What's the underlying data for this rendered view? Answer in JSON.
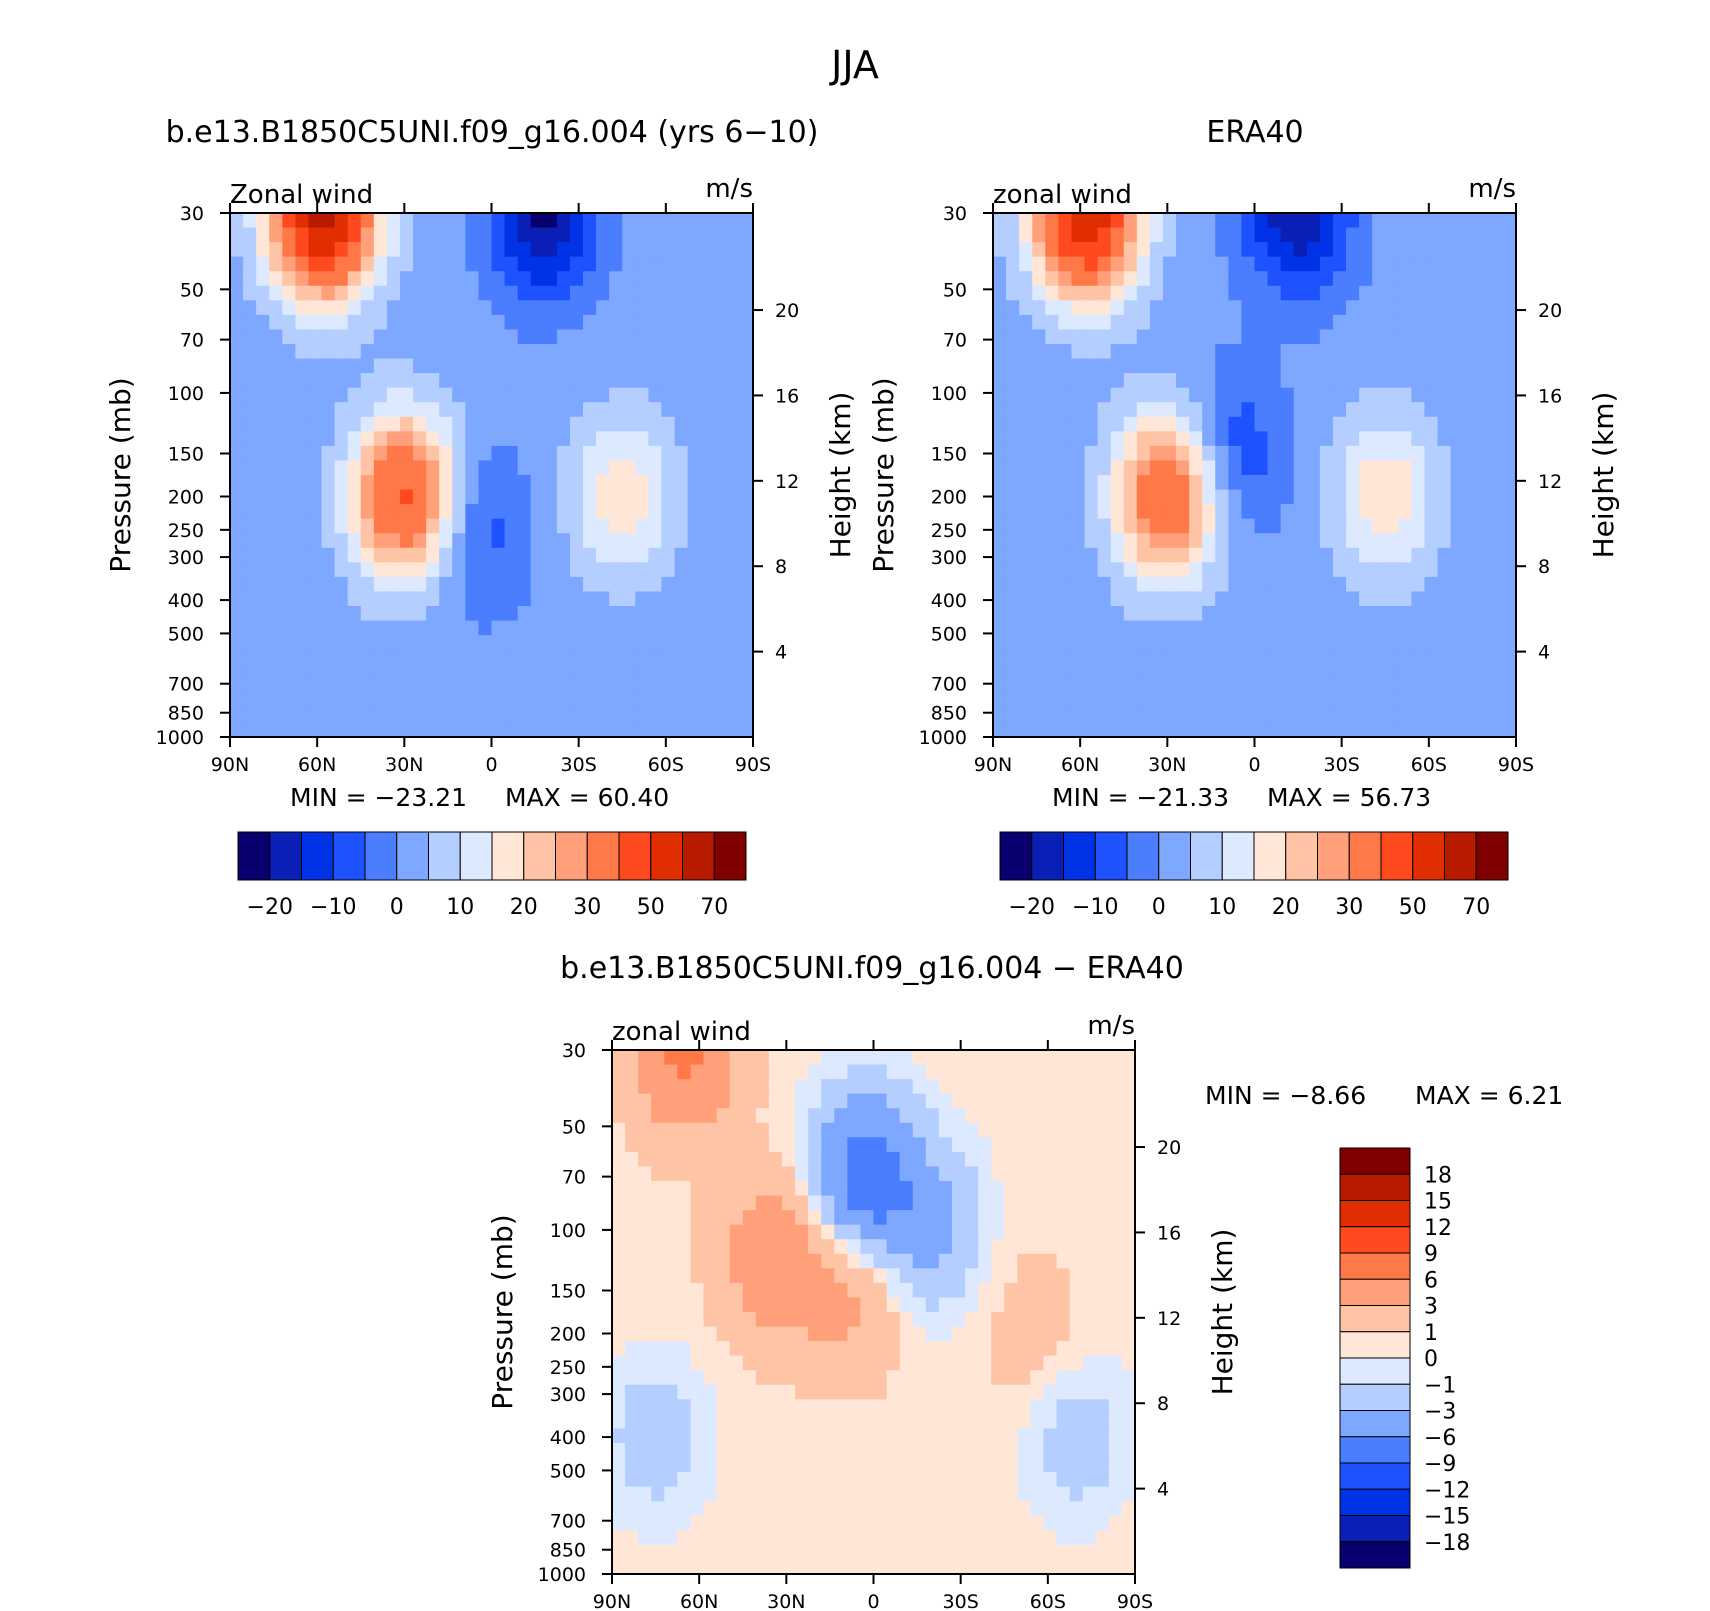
{
  "figure": {
    "title": "JJA"
  },
  "colors": {
    "abs_bins": [
      "#08006e",
      "#0a1fb5",
      "#0033e6",
      "#1f52ff",
      "#4a7eff",
      "#7ea8ff",
      "#b4ceff",
      "#dce9ff",
      "#ffe6d6",
      "#ffc4a6",
      "#ffa07a",
      "#ff7847",
      "#ff4a1f",
      "#e02e00",
      "#b81a00",
      "#800000"
    ],
    "diff_bins": [
      "#08006e",
      "#0a1fb5",
      "#0033e6",
      "#1f52ff",
      "#4a7eff",
      "#7ea8ff",
      "#b4ceff",
      "#dce9ff",
      "#ffe6d6",
      "#ffc4a6",
      "#ffa07a",
      "#ff7847",
      "#ff4a1f",
      "#e02e00",
      "#b81a00",
      "#800000"
    ]
  },
  "chart_data": [
    {
      "type": "heatmap",
      "id": "model",
      "title": "b.e13.B1850C5UNI.f09_g16.004 (yrs 6−10)",
      "left_label": "Zonal wind",
      "right_label": "m/s",
      "xlabel": "",
      "ylabel": "Pressure (mb)",
      "y2label": "Height (km)",
      "x_ticks": [
        "90N",
        "60N",
        "30N",
        "0",
        "30S",
        "60S",
        "90S"
      ],
      "y_ticks": [
        "30",
        "50",
        "70",
        "100",
        "150",
        "200",
        "250",
        "300",
        "400",
        "500",
        "700",
        "850",
        "1000"
      ],
      "height_ticks": [
        "20",
        "16",
        "12",
        "8",
        "4"
      ],
      "min_text": "MIN = −23.21",
      "max_text": "MAX = 60.40",
      "levels": [
        -25,
        -20,
        -15,
        -10,
        -5,
        0,
        5,
        10,
        15,
        20,
        25,
        30,
        40,
        50,
        60,
        70
      ],
      "colorbar_labels": [
        "−20",
        "−10",
        "0",
        "10",
        "20",
        "30",
        "50",
        "70"
      ],
      "peaks": [
        {
          "lat": -45,
          "p": 200,
          "value": 16
        },
        {
          "lat": -18,
          "p": 30,
          "value": -23.21
        },
        {
          "lat": 5,
          "p": 250,
          "value": -10
        },
        {
          "lat": 58,
          "p": 30,
          "value": 60.4
        },
        {
          "lat": 30,
          "p": 200,
          "value": 40
        }
      ],
      "background": 2
    },
    {
      "type": "heatmap",
      "id": "obs",
      "title": "ERA40",
      "left_label": "zonal wind",
      "right_label": "m/s",
      "xlabel": "",
      "ylabel": "Pressure (mb)",
      "y2label": "Height (km)",
      "x_ticks": [
        "90N",
        "60N",
        "30N",
        "0",
        "30S",
        "60S",
        "90S"
      ],
      "y_ticks": [
        "30",
        "50",
        "70",
        "100",
        "150",
        "200",
        "250",
        "300",
        "400",
        "500",
        "700",
        "850",
        "1000"
      ],
      "height_ticks": [
        "20",
        "16",
        "12",
        "8",
        "4"
      ],
      "min_text": "MIN = −21.33",
      "max_text": "MAX = 56.73",
      "levels": [
        -25,
        -20,
        -15,
        -10,
        -5,
        0,
        5,
        10,
        15,
        20,
        25,
        30,
        40,
        50,
        60,
        70
      ],
      "colorbar_labels": [
        "−20",
        "−10",
        "0",
        "10",
        "20",
        "30",
        "50",
        "70"
      ],
      "peaks": [
        {
          "lat": -45,
          "p": 200,
          "value": 17
        },
        {
          "lat": -15,
          "p": 30,
          "value": -21.33
        },
        {
          "lat": 8,
          "p": 150,
          "value": -12
        },
        {
          "lat": 58,
          "p": 30,
          "value": 56.73
        },
        {
          "lat": 30,
          "p": 200,
          "value": 38
        }
      ],
      "background": 2
    },
    {
      "type": "heatmap",
      "id": "diff",
      "title": "b.e13.B1850C5UNI.f09_g16.004 − ERA40",
      "left_label": "zonal wind",
      "right_label": "m/s",
      "xlabel": "",
      "ylabel": "Pressure (mb)",
      "y2label": "Height (km)",
      "x_ticks": [
        "90N",
        "60N",
        "30N",
        "0",
        "30S",
        "60S",
        "90S"
      ],
      "y_ticks": [
        "30",
        "50",
        "70",
        "100",
        "150",
        "200",
        "250",
        "300",
        "400",
        "500",
        "700",
        "850",
        "1000"
      ],
      "height_ticks": [
        "20",
        "16",
        "12",
        "8",
        "4"
      ],
      "min_text": "MIN = −8.66",
      "max_text": "MAX = 6.21",
      "levels": [
        -21,
        -18,
        -15,
        -12,
        -9,
        -6,
        -3,
        -1,
        0,
        1,
        3,
        6,
        9,
        12,
        15,
        18
      ],
      "colorbar_labels": [
        "−18",
        "−15",
        "−12",
        "−9",
        "−6",
        "−3",
        "−1",
        "0",
        "1",
        "3",
        "6",
        "9",
        "12",
        "15",
        "18"
      ],
      "peaks": [
        {
          "lat": 3,
          "p": 70,
          "value": -8.66
        },
        {
          "lat": -20,
          "p": 100,
          "value": -4
        },
        {
          "lat": 8,
          "p": 150,
          "value": 3.5
        },
        {
          "lat": 35,
          "p": 120,
          "value": 4.5
        },
        {
          "lat": 65,
          "p": 30,
          "value": 6.21
        },
        {
          "lat": 75,
          "p": 400,
          "value": -2.5
        },
        {
          "lat": -70,
          "p": 400,
          "value": -2.5
        },
        {
          "lat": -55,
          "p": 200,
          "value": 1.5
        }
      ],
      "background": 0.5
    }
  ]
}
